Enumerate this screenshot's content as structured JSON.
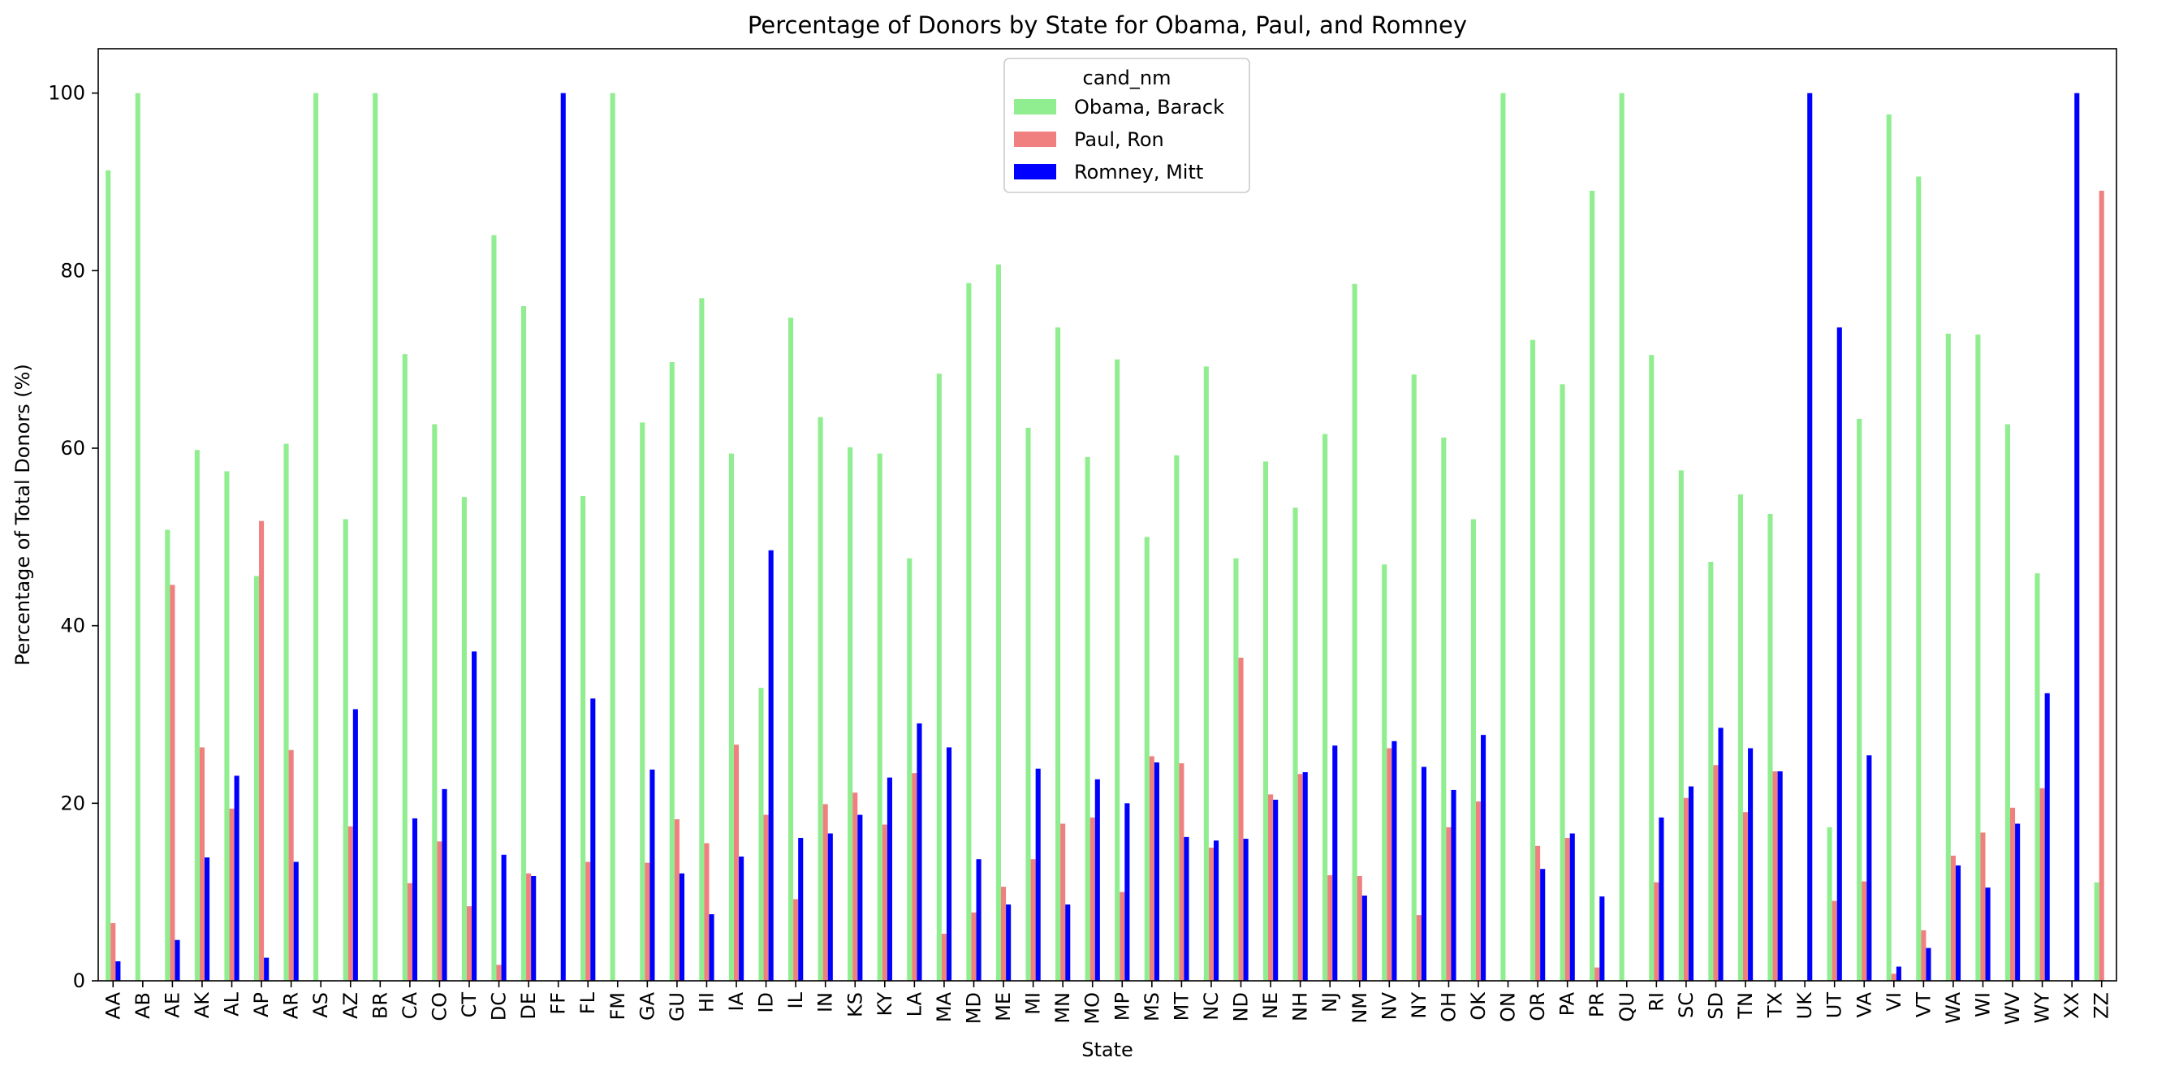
{
  "chart_data": {
    "type": "bar",
    "title": "Percentage of Donors by State for Obama, Paul, and Romney",
    "xlabel": "State",
    "ylabel": "Percentage of Total Donors (%)",
    "ylim": [
      0,
      105
    ],
    "yticks": [
      0,
      20,
      40,
      60,
      80,
      100
    ],
    "grid": false,
    "legend": {
      "title": "cand_nm",
      "placement": "top-center"
    },
    "categories": [
      "AA",
      "AB",
      "AE",
      "AK",
      "AL",
      "AP",
      "AR",
      "AS",
      "AZ",
      "BR",
      "CA",
      "CO",
      "CT",
      "DC",
      "DE",
      "FF",
      "FL",
      "FM",
      "GA",
      "GU",
      "HI",
      "IA",
      "ID",
      "IL",
      "IN",
      "KS",
      "KY",
      "LA",
      "MA",
      "MD",
      "ME",
      "MI",
      "MN",
      "MO",
      "MP",
      "MS",
      "MT",
      "NC",
      "ND",
      "NE",
      "NH",
      "NJ",
      "NM",
      "NV",
      "NY",
      "OH",
      "OK",
      "ON",
      "OR",
      "PA",
      "PR",
      "QU",
      "RI",
      "SC",
      "SD",
      "TN",
      "TX",
      "UK",
      "UT",
      "VA",
      "VI",
      "VT",
      "WA",
      "WI",
      "WV",
      "WY",
      "XX",
      "ZZ"
    ],
    "series": [
      {
        "name": "Obama, Barack",
        "color": "#90ee90",
        "values": [
          91.3,
          100,
          50.8,
          59.8,
          57.4,
          45.6,
          60.5,
          100,
          52.0,
          100,
          70.6,
          62.7,
          54.5,
          84.0,
          76.0,
          0,
          54.6,
          100,
          62.9,
          69.7,
          76.9,
          59.4,
          33.0,
          74.7,
          63.5,
          60.1,
          59.4,
          47.6,
          68.4,
          78.6,
          80.7,
          62.3,
          73.6,
          59.0,
          70.0,
          50.0,
          59.2,
          69.2,
          47.6,
          58.5,
          53.3,
          61.6,
          78.5,
          46.9,
          68.3,
          61.2,
          52.0,
          100,
          72.2,
          67.2,
          89.0,
          100,
          70.5,
          57.5,
          47.2,
          54.8,
          52.6,
          0,
          17.3,
          63.3,
          97.6,
          90.6,
          72.9,
          72.8,
          62.7,
          45.9,
          0,
          11.1
        ]
      },
      {
        "name": "Paul, Ron",
        "color": "#f08080",
        "values": [
          6.5,
          0,
          44.6,
          26.3,
          19.4,
          51.8,
          26.0,
          0,
          17.4,
          0,
          11.0,
          15.7,
          8.4,
          1.8,
          12.1,
          0,
          13.4,
          0,
          13.3,
          18.2,
          15.5,
          26.6,
          18.7,
          9.2,
          19.9,
          21.2,
          17.6,
          23.4,
          5.3,
          7.7,
          10.6,
          13.7,
          17.7,
          18.4,
          10.0,
          25.3,
          24.5,
          15.0,
          36.4,
          21.0,
          23.3,
          11.9,
          11.8,
          26.2,
          7.4,
          17.3,
          20.2,
          0,
          15.2,
          16.1,
          1.5,
          0,
          11.1,
          20.6,
          24.3,
          19.0,
          23.6,
          0,
          9.0,
          11.2,
          0.8,
          5.7,
          14.1,
          16.7,
          19.5,
          21.7,
          0,
          89.0
        ]
      },
      {
        "name": "Romney, Mitt",
        "color": "#0000ff",
        "values": [
          2.2,
          0,
          4.6,
          13.9,
          23.1,
          2.6,
          13.4,
          0,
          30.6,
          0,
          18.3,
          21.6,
          37.1,
          14.2,
          11.8,
          100,
          31.8,
          0,
          23.8,
          12.1,
          7.5,
          14.0,
          48.5,
          16.1,
          16.6,
          18.7,
          22.9,
          29.0,
          26.3,
          13.7,
          8.6,
          23.9,
          8.6,
          22.7,
          20.0,
          24.6,
          16.2,
          15.8,
          16.0,
          20.4,
          23.5,
          26.5,
          9.6,
          27.0,
          24.1,
          21.5,
          27.7,
          0,
          12.6,
          16.6,
          9.5,
          0,
          18.4,
          21.9,
          28.5,
          26.2,
          23.6,
          100,
          73.6,
          25.4,
          1.6,
          3.7,
          13.0,
          10.5,
          17.7,
          32.4,
          100,
          0
        ]
      }
    ]
  }
}
